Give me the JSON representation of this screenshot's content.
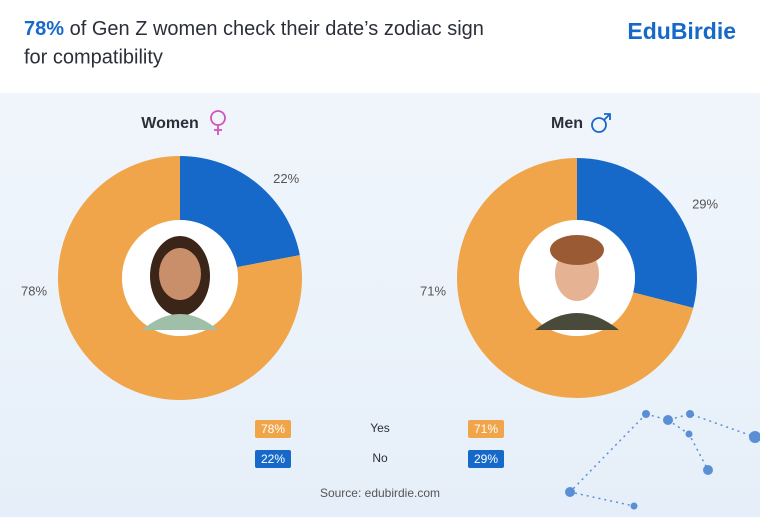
{
  "header": {
    "title": {
      "highlight": "78%",
      "text": "of Gen Z women check their date’s zodiac sign for compatibility"
    },
    "brand": "EduBirdie"
  },
  "chart_data": [
    {
      "type": "pie",
      "title": "Women",
      "categories": [
        "Yes",
        "No"
      ],
      "values": [
        78,
        22
      ],
      "value_labels": [
        "78%",
        "22%"
      ],
      "colors": [
        "#f0a54a",
        "#1769c9"
      ]
    },
    {
      "type": "pie",
      "title": "Men",
      "categories": [
        "Yes",
        "No"
      ],
      "values": [
        71,
        29
      ],
      "value_labels": [
        "71%",
        "29%"
      ],
      "colors": [
        "#f0a54a",
        "#1769c9"
      ]
    }
  ],
  "source": "Source: edubirdie.com"
}
